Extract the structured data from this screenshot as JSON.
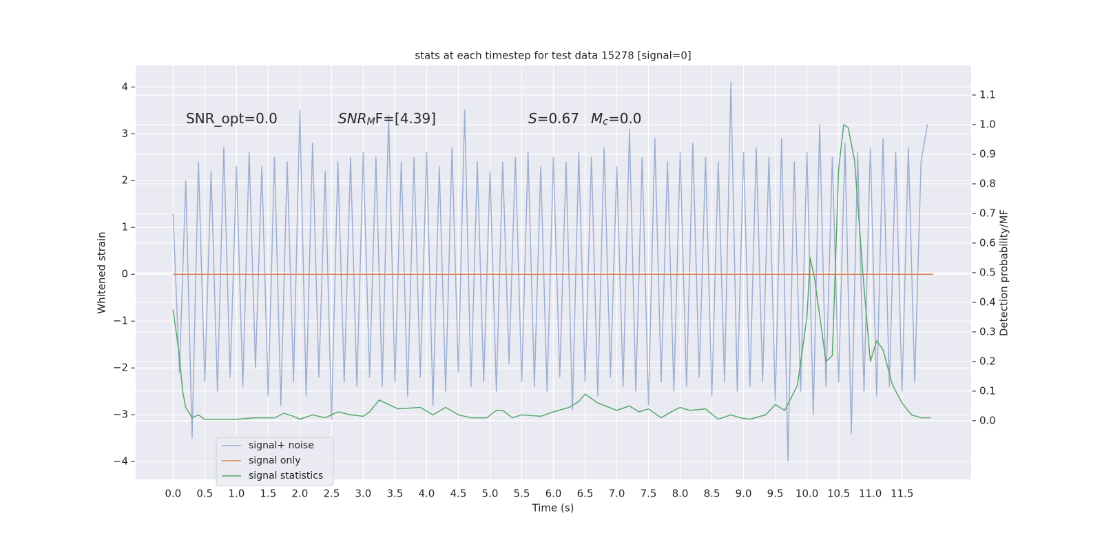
{
  "chart_data": {
    "type": "line",
    "title": "stats at each timestep for test data 15278 [signal=0]",
    "xlabel": "Time (s)",
    "ylabel": "Whitened strain",
    "y2label": "Detection probability/MF",
    "annotations": [
      [
        "SNR_opt=0.0"
      ],
      [
        "SNR",
        "M",
        "F=[4.39]"
      ],
      [
        "S",
        "=0.67"
      ],
      [
        "M",
        "c",
        "=0.0"
      ]
    ],
    "xlim": [
      -0.59,
      12.59
    ],
    "ylim": [
      -4.38,
      4.46
    ],
    "y2lim": [
      -0.198,
      1.2
    ],
    "xticks": [
      {
        "value": 0,
        "label": "0.0"
      },
      0.5,
      {
        "value": 1,
        "label": "1.0"
      },
      1.5,
      {
        "value": 2,
        "label": "2.0"
      },
      2.5,
      {
        "value": 3,
        "label": "3.0"
      },
      3.5,
      {
        "value": 4,
        "label": "4.0"
      },
      4.5,
      {
        "value": 5,
        "label": "5.0"
      },
      5.5,
      {
        "value": 6,
        "label": "6.0"
      },
      6.5,
      {
        "value": 7,
        "label": "7.0"
      },
      7.5,
      {
        "value": 8,
        "label": "8.0"
      },
      8.5,
      {
        "value": 9,
        "label": "9.0"
      },
      9.5,
      {
        "value": 10,
        "label": "10.0"
      },
      10.5,
      {
        "value": 11,
        "label": "11.0"
      },
      11.5
    ],
    "yticks": [
      {
        "value": -4,
        "label": "−4"
      },
      {
        "value": -3,
        "label": "−3"
      },
      {
        "value": -2,
        "label": "−2"
      },
      {
        "value": -1,
        "label": "−1"
      },
      0,
      1,
      2,
      3,
      4
    ],
    "y2ticks": [
      {
        "value": 0,
        "label": "0.0"
      },
      0.1,
      0.2,
      0.3,
      0.4,
      0.5,
      0.6,
      0.7,
      0.8,
      0.9,
      {
        "value": 1,
        "label": "1.0"
      },
      1.1
    ],
    "grid": true,
    "legend": "lower left",
    "series": [
      {
        "name": "signal+ noise",
        "color": "#4c72b0",
        "alpha": 0.5,
        "x": [
          0,
          0.1,
          0.2,
          0.3,
          0.4,
          0.5,
          0.6,
          0.7,
          0.8,
          0.9,
          1,
          1.1,
          1.2,
          1.3,
          1.4,
          1.5,
          1.6,
          1.7,
          1.8,
          1.9,
          2,
          2.1,
          2.2,
          2.3,
          2.4,
          2.5,
          2.6,
          2.7,
          2.8,
          2.9,
          3,
          3.1,
          3.2,
          3.3,
          3.4,
          3.5,
          3.6,
          3.7,
          3.8,
          3.9,
          4,
          4.1,
          4.2,
          4.3,
          4.4,
          4.5,
          4.6,
          4.7,
          4.8,
          4.9,
          5,
          5.1,
          5.2,
          5.3,
          5.4,
          5.5,
          5.6,
          5.7,
          5.8,
          5.9,
          6,
          6.1,
          6.2,
          6.3,
          6.4,
          6.5,
          6.6,
          6.7,
          6.8,
          6.9,
          7,
          7.1,
          7.2,
          7.3,
          7.4,
          7.5,
          7.6,
          7.7,
          7.8,
          7.9,
          8,
          8.1,
          8.2,
          8.3,
          8.4,
          8.5,
          8.6,
          8.7,
          8.8,
          8.9,
          9,
          9.1,
          9.2,
          9.3,
          9.4,
          9.5,
          9.6,
          9.7,
          9.8,
          9.9,
          10,
          10.1,
          10.2,
          10.3,
          10.4,
          10.5,
          10.6,
          10.7,
          10.8,
          10.9,
          11,
          11.1,
          11.2,
          11.3,
          11.4,
          11.5,
          11.6,
          11.7,
          11.8,
          11.9
        ],
        "values": [
          1.3,
          -2.1,
          2.0,
          -3.5,
          2.4,
          -2.3,
          2.2,
          -2.5,
          2.7,
          -2.2,
          2.3,
          -2.4,
          2.6,
          -2.0,
          2.3,
          -2.6,
          2.5,
          -2.8,
          2.4,
          -2.3,
          3.5,
          -2.6,
          2.8,
          -2.2,
          2.2,
          -3.1,
          2.4,
          -2.3,
          2.5,
          -2.4,
          2.6,
          -2.2,
          2.5,
          -2.4,
          3.4,
          -2.3,
          2.4,
          -2.6,
          2.5,
          -2.2,
          2.6,
          -2.8,
          2.3,
          -2.5,
          2.7,
          -2.1,
          3.5,
          -2.4,
          2.4,
          -2.3,
          2.2,
          -2.5,
          2.4,
          -1.9,
          2.5,
          -2.3,
          2.6,
          -2.4,
          2.3,
          -2.5,
          2.5,
          -2.2,
          2.4,
          -2.9,
          2.6,
          -2.3,
          2.5,
          -2.6,
          2.7,
          -2.2,
          2.3,
          -2.4,
          3.1,
          -2.5,
          2.5,
          -2.8,
          2.9,
          -2.3,
          2.4,
          -2.5,
          2.6,
          -2.4,
          2.8,
          -2.2,
          2.5,
          -2.6,
          2.4,
          -2.3,
          4.1,
          -2.5,
          2.6,
          -2.4,
          2.7,
          -2.3,
          2.5,
          -2.7,
          2.9,
          -4.0,
          2.4,
          -2.5,
          2.6,
          -3.0,
          3.2,
          -2.4,
          2.5,
          -2.3,
          2.8,
          -3.4,
          2.6,
          -2.5,
          2.7,
          -2.6,
          2.9,
          -2.4,
          2.6,
          -2.5,
          2.7,
          -2.3,
          2.4,
          3.2
        ]
      },
      {
        "name": "signal only",
        "color": "#dd8452",
        "x": [
          0,
          11.99
        ],
        "values": [
          0,
          0
        ]
      },
      {
        "name": "signal statistics",
        "color": "#55a868",
        "axis": "y2",
        "x": [
          0,
          0.1,
          0.15,
          0.2,
          0.3,
          0.4,
          0.5,
          0.7,
          1.0,
          1.3,
          1.6,
          1.75,
          1.9,
          2.0,
          2.2,
          2.4,
          2.6,
          2.8,
          3.0,
          3.1,
          3.25,
          3.4,
          3.55,
          3.9,
          4.1,
          4.3,
          4.5,
          4.7,
          4.95,
          5.1,
          5.2,
          5.35,
          5.5,
          5.8,
          6.0,
          6.25,
          6.4,
          6.5,
          6.7,
          7.0,
          7.2,
          7.35,
          7.5,
          7.7,
          7.9,
          8.0,
          8.15,
          8.4,
          8.6,
          8.8,
          8.95,
          9.1,
          9.35,
          9.5,
          9.65,
          9.85,
          10.0,
          10.05,
          10.12,
          10.3,
          10.4,
          10.5,
          10.58,
          10.65,
          10.75,
          10.9,
          11.0,
          11.1,
          11.2,
          11.35,
          11.5,
          11.65,
          11.8,
          11.95
        ],
        "values": [
          0.375,
          0.22,
          0.1,
          0.045,
          0.01,
          0.02,
          0.005,
          0.005,
          0.005,
          0.01,
          0.01,
          0.025,
          0.015,
          0.005,
          0.02,
          0.01,
          0.03,
          0.02,
          0.015,
          0.03,
          0.07,
          0.055,
          0.04,
          0.045,
          0.02,
          0.045,
          0.02,
          0.01,
          0.01,
          0.035,
          0.035,
          0.01,
          0.02,
          0.015,
          0.03,
          0.045,
          0.065,
          0.09,
          0.06,
          0.035,
          0.05,
          0.03,
          0.04,
          0.01,
          0.035,
          0.045,
          0.035,
          0.04,
          0.005,
          0.02,
          0.01,
          0.005,
          0.02,
          0.055,
          0.035,
          0.12,
          0.35,
          0.55,
          0.48,
          0.2,
          0.22,
          0.85,
          1.0,
          0.99,
          0.88,
          0.45,
          0.2,
          0.27,
          0.24,
          0.12,
          0.06,
          0.02,
          0.01,
          0.01
        ]
      }
    ]
  }
}
